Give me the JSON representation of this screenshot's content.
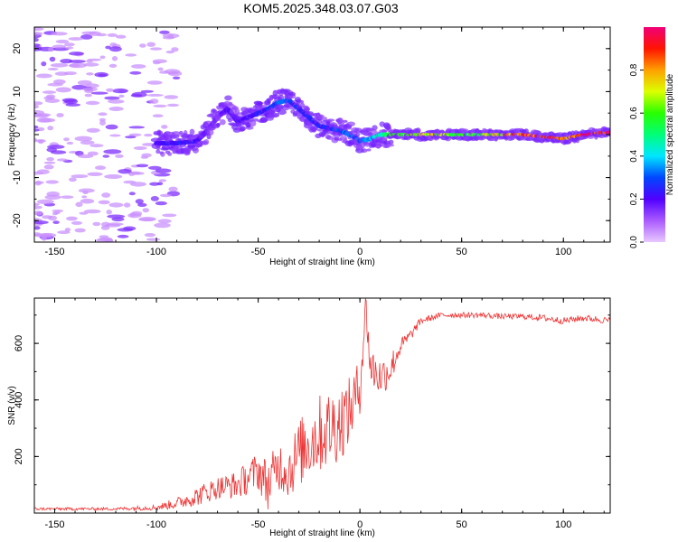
{
  "title": "KOM5.2025.348.03.07.G03",
  "chart_data": [
    {
      "type": "heatmap",
      "title": "KOM5.2025.348.03.07.G03",
      "xlabel": "Height of straight line (km)",
      "ylabel": "Frequency (Hz)",
      "xlim": [
        -160,
        123
      ],
      "ylim": [
        -25,
        25
      ],
      "xticks": [
        -150,
        -100,
        -50,
        0,
        50,
        100
      ],
      "yticks": [
        -20,
        -10,
        0,
        10,
        20
      ],
      "colorbar": {
        "label": "Normalized spectral amplitude",
        "range": [
          0,
          1
        ],
        "ticks": [
          0.0,
          0.2,
          0.4,
          0.6,
          0.8
        ],
        "colormap": "rainbow (violet-blue-cyan-green-yellow-red-magenta)"
      },
      "ridge": {
        "x": [
          -100,
          -90,
          -80,
          -75,
          -70,
          -65,
          -60,
          -55,
          -50,
          -45,
          -40,
          -35,
          -30,
          -25,
          -20,
          -15,
          -10,
          -5,
          0,
          5,
          10,
          20,
          30,
          40,
          50,
          60,
          70,
          80,
          90,
          100,
          110,
          120
        ],
        "y": [
          -2,
          -2,
          -1.5,
          1,
          4,
          6,
          3,
          4,
          5,
          6,
          7.5,
          8,
          6,
          4,
          2,
          1.5,
          1,
          0,
          -1.5,
          -1,
          0,
          0,
          0,
          0,
          0,
          0,
          0,
          0,
          -0.5,
          -1,
          0,
          0.5
        ],
        "amplitude": [
          0.2,
          0.25,
          0.2,
          0.15,
          0.15,
          0.2,
          0.2,
          0.2,
          0.25,
          0.25,
          0.3,
          0.3,
          0.25,
          0.25,
          0.25,
          0.25,
          0.3,
          0.3,
          0.3,
          0.35,
          0.45,
          0.6,
          0.75,
          0.65,
          0.55,
          0.6,
          0.75,
          0.85,
          0.9,
          0.8,
          0.9,
          0.95
        ]
      }
    },
    {
      "type": "line",
      "xlabel": "Height of straight line (km)",
      "ylabel": "SNR (v/v)",
      "xlim": [
        -160,
        123
      ],
      "ylim": [
        0,
        760
      ],
      "xticks": [
        -150,
        -100,
        -50,
        0,
        50,
        100
      ],
      "yticks": [
        200,
        400,
        600
      ],
      "series": [
        {
          "name": "SNR",
          "color": "#ee3333",
          "x": [
            -160,
            -140,
            -120,
            -100,
            -90,
            -80,
            -70,
            -60,
            -50,
            -45,
            -40,
            -35,
            -30,
            -25,
            -20,
            -15,
            -10,
            -5,
            0,
            3,
            5,
            10,
            15,
            20,
            25,
            30,
            40,
            50,
            60,
            70,
            80,
            90,
            100,
            110,
            123
          ],
          "y": [
            15,
            15,
            15,
            20,
            35,
            60,
            90,
            100,
            150,
            100,
            170,
            150,
            210,
            250,
            280,
            300,
            320,
            360,
            450,
            740,
            520,
            480,
            510,
            590,
            630,
            680,
            700,
            700,
            700,
            695,
            695,
            690,
            680,
            690,
            680
          ],
          "noise": [
            5,
            5,
            5,
            10,
            20,
            35,
            40,
            50,
            70,
            90,
            90,
            100,
            120,
            130,
            140,
            140,
            140,
            120,
            100,
            60,
            80,
            70,
            60,
            30,
            20,
            12,
            10,
            10,
            10,
            10,
            10,
            12,
            12,
            12,
            12
          ]
        }
      ]
    }
  ]
}
